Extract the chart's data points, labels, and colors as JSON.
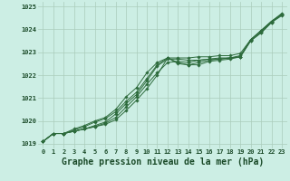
{
  "title": "Graphe pression niveau de la mer (hPa)",
  "background_color": "#cceee4",
  "grid_color": "#aaccbb",
  "line_color": "#2d6b3c",
  "xlim": [
    -0.5,
    23.5
  ],
  "ylim": [
    1018.8,
    1025.2
  ],
  "yticks": [
    1019,
    1020,
    1021,
    1022,
    1023,
    1024,
    1025
  ],
  "xticks": [
    0,
    1,
    2,
    3,
    4,
    5,
    6,
    7,
    8,
    9,
    10,
    11,
    12,
    13,
    14,
    15,
    16,
    17,
    18,
    19,
    20,
    21,
    22,
    23
  ],
  "lines": [
    [
      1019.1,
      1019.45,
      1019.45,
      1019.55,
      1019.65,
      1019.75,
      1019.85,
      1020.05,
      1020.45,
      1020.9,
      1021.4,
      1022.0,
      1022.75,
      1022.75,
      1022.75,
      1022.8,
      1022.8,
      1022.85,
      1022.85,
      1022.95,
      1023.55,
      1023.9,
      1024.35,
      1024.65
    ],
    [
      1019.1,
      1019.45,
      1019.45,
      1019.55,
      1019.65,
      1019.75,
      1019.9,
      1020.15,
      1020.6,
      1021.05,
      1021.6,
      1022.1,
      1022.55,
      1022.6,
      1022.55,
      1022.65,
      1022.7,
      1022.75,
      1022.75,
      1022.8,
      1023.5,
      1023.85,
      1024.3,
      1024.6
    ],
    [
      1019.1,
      1019.45,
      1019.45,
      1019.55,
      1019.65,
      1019.8,
      1019.95,
      1020.3,
      1020.75,
      1021.15,
      1021.75,
      1022.4,
      1022.7,
      1022.7,
      1022.65,
      1022.65,
      1022.7,
      1022.7,
      1022.75,
      1022.8,
      1023.5,
      1023.85,
      1024.3,
      1024.65
    ],
    [
      1019.1,
      1019.45,
      1019.45,
      1019.6,
      1019.75,
      1019.95,
      1020.1,
      1020.4,
      1020.85,
      1021.25,
      1021.85,
      1022.45,
      1022.75,
      1022.55,
      1022.45,
      1022.55,
      1022.65,
      1022.7,
      1022.75,
      1022.85,
      1023.55,
      1023.95,
      1024.35,
      1024.65
    ],
    [
      1019.1,
      1019.45,
      1019.45,
      1019.65,
      1019.8,
      1020.0,
      1020.15,
      1020.5,
      1021.05,
      1021.45,
      1022.1,
      1022.55,
      1022.75,
      1022.5,
      1022.45,
      1022.45,
      1022.6,
      1022.65,
      1022.7,
      1022.8,
      1023.55,
      1023.95,
      1024.35,
      1024.7
    ]
  ],
  "marker": "D",
  "markersize": 1.8,
  "linewidth": 0.7,
  "title_fontsize": 7,
  "tick_fontsize": 5,
  "title_color": "#1a4a28",
  "tick_color": "#1a4a28"
}
